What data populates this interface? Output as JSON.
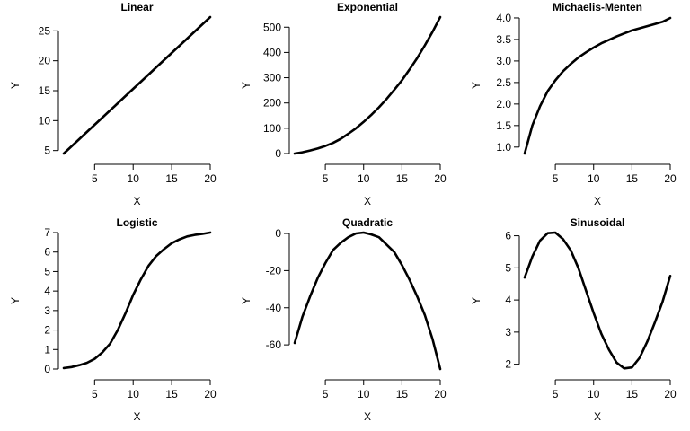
{
  "chart_data": [
    {
      "type": "line",
      "title": "Linear",
      "xlabel": "X",
      "ylabel": "Y",
      "xlim": [
        1,
        20
      ],
      "ylim": [
        4.5,
        27.3
      ],
      "xticks": [
        5,
        10,
        15,
        20
      ],
      "yticks": [
        5,
        10,
        15,
        20,
        25
      ],
      "grid": false,
      "series": [
        {
          "x": [
            1,
            2,
            3,
            4,
            5,
            6,
            7,
            8,
            9,
            10,
            11,
            12,
            13,
            14,
            15,
            16,
            17,
            18,
            19,
            20
          ],
          "y": [
            4.5,
            5.7,
            6.9,
            8.1,
            9.3,
            10.5,
            11.7,
            12.9,
            14.1,
            15.3,
            16.5,
            17.7,
            18.9,
            20.1,
            21.3,
            22.5,
            23.7,
            24.9,
            26.1,
            27.3
          ]
        }
      ]
    },
    {
      "type": "line",
      "title": "Exponential",
      "xlabel": "X",
      "ylabel": "Y",
      "xlim": [
        1,
        20
      ],
      "ylim": [
        0,
        540
      ],
      "xticks": [
        5,
        10,
        15,
        20
      ],
      "yticks": [
        0,
        100,
        200,
        300,
        400,
        500
      ],
      "grid": false,
      "series": [
        {
          "x": [
            1,
            2,
            3,
            4,
            5,
            6,
            7,
            8,
            9,
            10,
            11,
            12,
            13,
            14,
            15,
            16,
            17,
            18,
            19,
            20
          ],
          "y": [
            0,
            5,
            12,
            20,
            30,
            42,
            58,
            78,
            100,
            125,
            153,
            183,
            216,
            252,
            290,
            333,
            378,
            428,
            482,
            540
          ]
        }
      ]
    },
    {
      "type": "line",
      "title": "Michaelis-Menten",
      "xlabel": "X",
      "ylabel": "Y",
      "xlim": [
        1,
        20
      ],
      "ylim": [
        0.85,
        4.02
      ],
      "xticks": [
        5,
        10,
        15,
        20
      ],
      "yticks": [
        1.0,
        1.5,
        2.0,
        2.5,
        3.0,
        3.5,
        4.0
      ],
      "grid": false,
      "series": [
        {
          "x": [
            1,
            2,
            3,
            4,
            5,
            6,
            7,
            8,
            9,
            10,
            11,
            12,
            13,
            14,
            15,
            16,
            17,
            18,
            19,
            20
          ],
          "y": [
            0.85,
            1.5,
            1.95,
            2.3,
            2.55,
            2.76,
            2.93,
            3.08,
            3.2,
            3.31,
            3.41,
            3.49,
            3.57,
            3.64,
            3.71,
            3.76,
            3.81,
            3.86,
            3.91,
            4.0
          ]
        }
      ]
    },
    {
      "type": "line",
      "title": "Logistic",
      "xlabel": "X",
      "ylabel": "Y",
      "xlim": [
        1,
        20
      ],
      "ylim": [
        0,
        7
      ],
      "xticks": [
        5,
        10,
        15,
        20
      ],
      "yticks": [
        0,
        1,
        2,
        3,
        4,
        5,
        6,
        7
      ],
      "grid": false,
      "series": [
        {
          "x": [
            1,
            2,
            3,
            4,
            5,
            6,
            7,
            8,
            9,
            10,
            11,
            12,
            13,
            14,
            15,
            16,
            17,
            18,
            19,
            20
          ],
          "y": [
            0.05,
            0.1,
            0.2,
            0.32,
            0.52,
            0.85,
            1.3,
            2.0,
            2.85,
            3.8,
            4.6,
            5.3,
            5.8,
            6.15,
            6.45,
            6.65,
            6.8,
            6.88,
            6.93,
            7.0
          ]
        }
      ]
    },
    {
      "type": "line",
      "title": "Quadratic",
      "xlabel": "X",
      "ylabel": "Y",
      "xlim": [
        1,
        20
      ],
      "ylim": [
        -73,
        0.5
      ],
      "xticks": [
        5,
        10,
        15,
        20
      ],
      "yticks": [
        -60,
        -40,
        -20,
        0
      ],
      "grid": false,
      "series": [
        {
          "x": [
            1,
            2,
            3,
            4,
            5,
            6,
            7,
            8,
            9,
            10,
            11,
            12,
            13,
            14,
            15,
            16,
            17,
            18,
            19,
            20
          ],
          "y": [
            -59,
            -45,
            -34,
            -24,
            -16,
            -9,
            -5,
            -2,
            0,
            0.5,
            -0.5,
            -2,
            -6,
            -10,
            -17,
            -25,
            -34,
            -44,
            -57,
            -73
          ]
        }
      ]
    },
    {
      "type": "line",
      "title": "Sinusoidal",
      "xlabel": "X",
      "ylabel": "Y",
      "xlim": [
        1,
        20
      ],
      "ylim": [
        1.85,
        6.1
      ],
      "xticks": [
        5,
        10,
        15,
        20
      ],
      "yticks": [
        2,
        3,
        4,
        5,
        6
      ],
      "grid": false,
      "series": [
        {
          "x": [
            1,
            2,
            3,
            4,
            5,
            6,
            7,
            8,
            9,
            10,
            11,
            12,
            13,
            14,
            15,
            16,
            17,
            18,
            19,
            20
          ],
          "y": [
            4.7,
            5.35,
            5.85,
            6.08,
            6.1,
            5.9,
            5.55,
            5.0,
            4.3,
            3.6,
            2.95,
            2.45,
            2.05,
            1.87,
            1.9,
            2.2,
            2.7,
            3.3,
            3.95,
            4.75
          ]
        }
      ]
    }
  ]
}
